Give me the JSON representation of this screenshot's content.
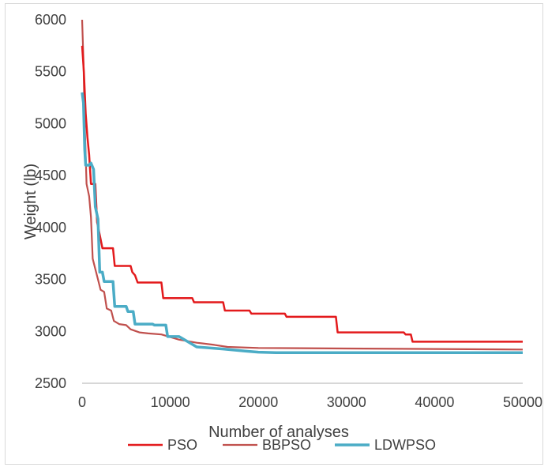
{
  "chart_data": {
    "type": "line",
    "title": "",
    "xlabel": "Number of analyses",
    "ylabel": "Weight (lb)",
    "xlim": [
      0,
      50000
    ],
    "ylim": [
      2500,
      6000
    ],
    "x_ticks": [
      0,
      10000,
      20000,
      30000,
      40000,
      50000
    ],
    "y_ticks": [
      2500,
      3000,
      3500,
      4000,
      4500,
      5000,
      5500,
      6000
    ],
    "x_tick_labels": [
      "0",
      "10000",
      "20000",
      "30000",
      "40000",
      "50000"
    ],
    "y_tick_labels": [
      "2500",
      "3000",
      "3500",
      "4000",
      "4500",
      "5000",
      "5500",
      "6000"
    ],
    "grid": false,
    "legend_position": "bottom",
    "series": [
      {
        "name": "PSO",
        "color": "#e31a1c",
        "points": [
          [
            0,
            5750
          ],
          [
            200,
            5500
          ],
          [
            400,
            5100
          ],
          [
            600,
            4870
          ],
          [
            800,
            4700
          ],
          [
            1000,
            4420
          ],
          [
            1500,
            4420
          ],
          [
            1700,
            4050
          ],
          [
            2000,
            3930
          ],
          [
            2300,
            3800
          ],
          [
            3500,
            3800
          ],
          [
            3700,
            3630
          ],
          [
            5500,
            3630
          ],
          [
            5700,
            3570
          ],
          [
            6000,
            3540
          ],
          [
            6300,
            3470
          ],
          [
            7500,
            3470
          ],
          [
            9000,
            3470
          ],
          [
            9200,
            3320
          ],
          [
            12500,
            3320
          ],
          [
            12700,
            3280
          ],
          [
            16000,
            3280
          ],
          [
            16200,
            3200
          ],
          [
            19000,
            3200
          ],
          [
            19200,
            3170
          ],
          [
            23000,
            3170
          ],
          [
            23200,
            3140
          ],
          [
            28800,
            3140
          ],
          [
            29000,
            2990
          ],
          [
            36500,
            2990
          ],
          [
            36700,
            2970
          ],
          [
            37300,
            2970
          ],
          [
            37500,
            2900
          ],
          [
            50000,
            2900
          ]
        ]
      },
      {
        "name": "BBPSO",
        "color": "#c0504d",
        "points": [
          [
            0,
            6000
          ],
          [
            150,
            5600
          ],
          [
            300,
            5000
          ],
          [
            500,
            4420
          ],
          [
            800,
            4300
          ],
          [
            1000,
            4100
          ],
          [
            1200,
            3700
          ],
          [
            1500,
            3600
          ],
          [
            1800,
            3500
          ],
          [
            2100,
            3400
          ],
          [
            2500,
            3380
          ],
          [
            2800,
            3220
          ],
          [
            3300,
            3200
          ],
          [
            3600,
            3100
          ],
          [
            4200,
            3070
          ],
          [
            5000,
            3060
          ],
          [
            5500,
            3020
          ],
          [
            6500,
            2990
          ],
          [
            7500,
            2980
          ],
          [
            9000,
            2970
          ],
          [
            11000,
            2920
          ],
          [
            13000,
            2890
          ],
          [
            15000,
            2870
          ],
          [
            16500,
            2850
          ],
          [
            20000,
            2840
          ],
          [
            30000,
            2835
          ],
          [
            40000,
            2830
          ],
          [
            50000,
            2825
          ]
        ]
      },
      {
        "name": "LDWPSO",
        "color": "#4bacc6",
        "points": [
          [
            0,
            5300
          ],
          [
            150,
            5200
          ],
          [
            300,
            4750
          ],
          [
            400,
            4600
          ],
          [
            800,
            4600
          ],
          [
            1000,
            4620
          ],
          [
            1300,
            4560
          ],
          [
            1500,
            4200
          ],
          [
            1800,
            4080
          ],
          [
            2000,
            3570
          ],
          [
            2300,
            3570
          ],
          [
            2500,
            3480
          ],
          [
            3500,
            3480
          ],
          [
            3700,
            3240
          ],
          [
            5000,
            3240
          ],
          [
            5200,
            3190
          ],
          [
            5800,
            3190
          ],
          [
            6000,
            3070
          ],
          [
            8000,
            3070
          ],
          [
            8200,
            3060
          ],
          [
            9500,
            3060
          ],
          [
            9700,
            2950
          ],
          [
            11000,
            2950
          ],
          [
            13000,
            2850
          ],
          [
            16000,
            2830
          ],
          [
            18500,
            2810
          ],
          [
            20000,
            2800
          ],
          [
            22000,
            2795
          ],
          [
            50000,
            2795
          ]
        ]
      }
    ]
  }
}
